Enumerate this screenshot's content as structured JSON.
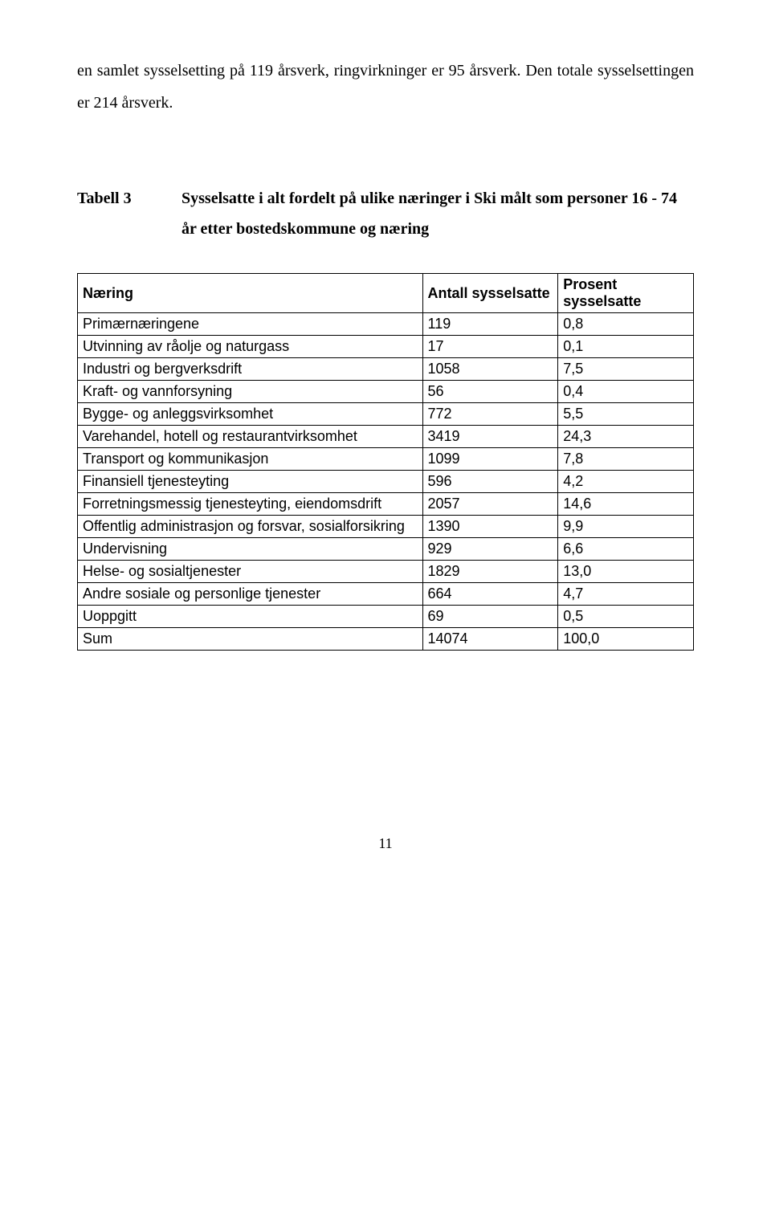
{
  "paragraph": "en samlet sysselsetting på 119 årsverk, ringvirkninger er 95 årsverk. Den totale sysselsettingen er 214 årsverk.",
  "table_title": {
    "label": "Tabell 3",
    "desc": "Sysselsatte i alt fordelt på ulike næringer i Ski målt som personer  16  -  74 år etter bostedskommune og næring"
  },
  "table": {
    "headers": [
      "Næring",
      "Antall sysselsatte",
      "Prosent sysselsatte"
    ],
    "rows": [
      [
        "Primærnæringene",
        "119",
        "0,8"
      ],
      [
        "Utvinning av råolje og naturgass",
        "17",
        "0,1"
      ],
      [
        "Industri og bergverksdrift",
        "1058",
        "7,5"
      ],
      [
        "Kraft- og vannforsyning",
        "56",
        "0,4"
      ],
      [
        "Bygge- og anleggsvirksomhet",
        "772",
        "5,5"
      ],
      [
        "Varehandel, hotell og restaurantvirksomhet",
        "3419",
        "24,3"
      ],
      [
        "Transport og kommunikasjon",
        "1099",
        "7,8"
      ],
      [
        "Finansiell tjenesteyting",
        "596",
        "4,2"
      ],
      [
        "Forretningsmessig tjenesteyting, eiendomsdrift",
        "2057",
        "14,6"
      ],
      [
        "Offentlig administrasjon og forsvar, sosialforsikring",
        "1390",
        "9,9"
      ],
      [
        "Undervisning",
        "929",
        "6,6"
      ],
      [
        "Helse- og sosialtjenester",
        "1829",
        "13,0"
      ],
      [
        "Andre sosiale og personlige tjenester",
        "664",
        "4,7"
      ],
      [
        "Uoppgitt",
        "69",
        "0,5"
      ],
      [
        "Sum",
        "14074",
        "100,0"
      ]
    ]
  },
  "page_number": "11"
}
